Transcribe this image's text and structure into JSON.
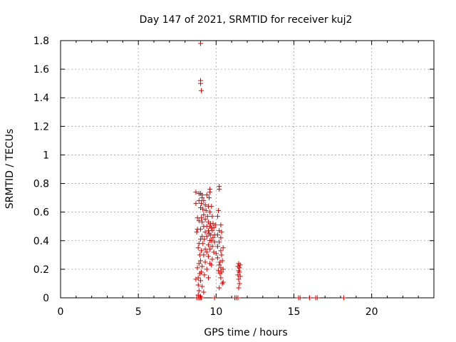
{
  "chart_data": {
    "type": "scatter",
    "title": "Day 147 of 2021, SRMTID for receiver kuj2",
    "xlabel": "GPS time / hours",
    "ylabel": "SRMTID / TECUs",
    "xlim": [
      0,
      24
    ],
    "ylim": [
      0,
      1.8
    ],
    "xticks": [
      0,
      5,
      10,
      15,
      20
    ],
    "yticks": [
      0,
      0.2,
      0.4,
      0.6,
      0.8,
      1,
      1.2,
      1.4,
      1.6,
      1.8
    ],
    "xtick_labels": [
      "0",
      "5",
      "10",
      "15",
      "20"
    ],
    "ytick_labels": [
      "0",
      "0.2",
      "0.4",
      "0.6",
      "0.8",
      "1",
      "1.2",
      "1.4",
      "1.6",
      "1.8"
    ],
    "grid": true,
    "marker": "+",
    "color": "#dd0000",
    "series": [
      {
        "name": "kuj2",
        "points": [
          [
            9.0,
            1.78
          ],
          [
            9.0,
            1.52
          ],
          [
            9.0,
            1.5
          ],
          [
            9.05,
            1.45
          ],
          [
            10.2,
            0.78
          ],
          [
            10.2,
            0.76
          ],
          [
            9.6,
            0.76
          ],
          [
            9.6,
            0.74
          ],
          [
            8.7,
            0.74
          ],
          [
            8.9,
            0.73
          ],
          [
            9.0,
            0.73
          ],
          [
            9.1,
            0.72
          ],
          [
            9.4,
            0.72
          ],
          [
            9.55,
            0.7
          ],
          [
            9.1,
            0.7
          ],
          [
            8.9,
            0.68
          ],
          [
            9.2,
            0.68
          ],
          [
            8.7,
            0.66
          ],
          [
            9.05,
            0.66
          ],
          [
            9.3,
            0.65
          ],
          [
            9.5,
            0.64
          ],
          [
            9.7,
            0.64
          ],
          [
            9.0,
            0.63
          ],
          [
            9.15,
            0.62
          ],
          [
            9.35,
            0.61
          ],
          [
            9.6,
            0.6
          ],
          [
            9.2,
            0.58
          ],
          [
            9.45,
            0.57
          ],
          [
            9.75,
            0.57
          ],
          [
            10.1,
            0.57
          ],
          [
            10.15,
            0.61
          ],
          [
            8.8,
            0.56
          ],
          [
            9.05,
            0.56
          ],
          [
            9.3,
            0.55
          ],
          [
            8.9,
            0.54
          ],
          [
            9.1,
            0.53
          ],
          [
            9.5,
            0.53
          ],
          [
            9.65,
            0.52
          ],
          [
            9.8,
            0.52
          ],
          [
            9.95,
            0.51
          ],
          [
            10.3,
            0.51
          ],
          [
            9.2,
            0.5
          ],
          [
            9.4,
            0.5
          ],
          [
            9.6,
            0.5
          ],
          [
            9.7,
            0.49
          ],
          [
            9.85,
            0.49
          ],
          [
            9.0,
            0.48
          ],
          [
            8.8,
            0.48
          ],
          [
            9.5,
            0.47
          ],
          [
            9.75,
            0.47
          ],
          [
            10.2,
            0.47
          ],
          [
            10.35,
            0.46
          ],
          [
            8.75,
            0.46
          ],
          [
            9.3,
            0.46
          ],
          [
            9.55,
            0.45
          ],
          [
            9.65,
            0.44
          ],
          [
            9.9,
            0.44
          ],
          [
            10.1,
            0.44
          ],
          [
            9.1,
            0.43
          ],
          [
            9.4,
            0.43
          ],
          [
            9.8,
            0.42
          ],
          [
            10.3,
            0.42
          ],
          [
            9.0,
            0.41
          ],
          [
            9.25,
            0.41
          ],
          [
            9.6,
            0.4
          ],
          [
            9.7,
            0.4
          ],
          [
            9.9,
            0.39
          ],
          [
            10.2,
            0.39
          ],
          [
            8.9,
            0.38
          ],
          [
            9.15,
            0.38
          ],
          [
            9.5,
            0.37
          ],
          [
            9.75,
            0.36
          ],
          [
            10.1,
            0.36
          ],
          [
            8.85,
            0.35
          ],
          [
            9.3,
            0.34
          ],
          [
            9.6,
            0.34
          ],
          [
            10.45,
            0.35
          ],
          [
            10.3,
            0.33
          ],
          [
            9.05,
            0.33
          ],
          [
            9.4,
            0.32
          ],
          [
            9.85,
            0.32
          ],
          [
            10.0,
            0.31
          ],
          [
            8.95,
            0.3
          ],
          [
            9.2,
            0.3
          ],
          [
            10.35,
            0.3
          ],
          [
            9.5,
            0.29
          ],
          [
            10.1,
            0.28
          ],
          [
            9.75,
            0.27
          ],
          [
            9.0,
            0.26
          ],
          [
            9.3,
            0.25
          ],
          [
            10.4,
            0.26
          ],
          [
            10.25,
            0.25
          ],
          [
            8.9,
            0.24
          ],
          [
            9.6,
            0.24
          ],
          [
            9.7,
            0.23
          ],
          [
            10.2,
            0.23
          ],
          [
            11.45,
            0.24
          ],
          [
            11.55,
            0.23
          ],
          [
            11.4,
            0.22
          ],
          [
            11.5,
            0.21
          ],
          [
            9.1,
            0.22
          ],
          [
            8.8,
            0.21
          ],
          [
            10.3,
            0.21
          ],
          [
            10.45,
            0.2
          ],
          [
            9.4,
            0.2
          ],
          [
            10.15,
            0.19
          ],
          [
            11.45,
            0.19
          ],
          [
            11.5,
            0.18
          ],
          [
            9.05,
            0.18
          ],
          [
            8.95,
            0.17
          ],
          [
            10.35,
            0.18
          ],
          [
            10.25,
            0.17
          ],
          [
            9.25,
            0.16
          ],
          [
            11.4,
            0.16
          ],
          [
            11.55,
            0.15
          ],
          [
            8.85,
            0.14
          ],
          [
            9.5,
            0.14
          ],
          [
            10.3,
            0.14
          ],
          [
            11.45,
            0.13
          ],
          [
            8.7,
            0.13
          ],
          [
            9.0,
            0.12
          ],
          [
            10.45,
            0.11
          ],
          [
            10.4,
            0.1
          ],
          [
            11.5,
            0.1
          ],
          [
            8.85,
            0.09
          ],
          [
            9.1,
            0.08
          ],
          [
            10.2,
            0.07
          ],
          [
            11.45,
            0.07
          ],
          [
            8.9,
            0.05
          ],
          [
            9.2,
            0.04
          ],
          [
            8.85,
            0.02
          ],
          [
            9.0,
            0.01
          ],
          [
            8.75,
            0.0
          ],
          [
            8.85,
            0.0
          ],
          [
            8.95,
            0.0
          ],
          [
            9.05,
            0.0
          ],
          [
            9.9,
            0.0
          ],
          [
            11.2,
            0.0
          ],
          [
            11.3,
            0.0
          ],
          [
            11.4,
            0.0
          ],
          [
            15.3,
            0.0
          ],
          [
            15.4,
            0.0
          ],
          [
            16.0,
            0.0
          ],
          [
            16.4,
            0.0
          ],
          [
            16.5,
            0.0
          ],
          [
            18.2,
            0.0
          ]
        ]
      }
    ]
  }
}
